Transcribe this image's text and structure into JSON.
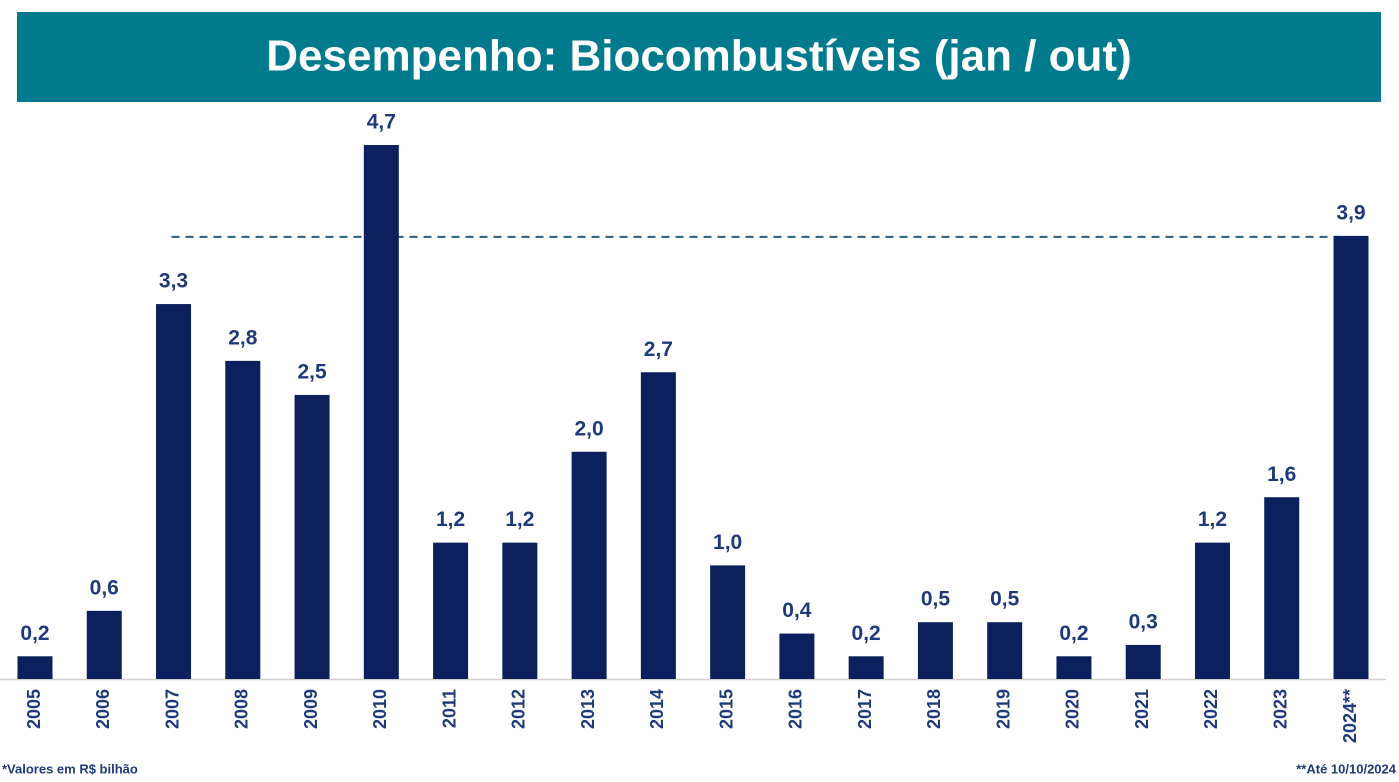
{
  "chart_data": {
    "type": "bar",
    "title": "Desempenho: Biocombustíveis (jan / out)",
    "categories": [
      "2005",
      "2006",
      "2007",
      "2008",
      "2009",
      "2010",
      "2011",
      "2012",
      "2013",
      "2014",
      "2015",
      "2016",
      "2017",
      "2018",
      "2019",
      "2020",
      "2021",
      "2022",
      "2023",
      "2024**"
    ],
    "values": [
      0.2,
      0.6,
      3.3,
      2.8,
      2.5,
      4.7,
      1.2,
      1.2,
      2.0,
      2.7,
      1.0,
      0.4,
      0.2,
      0.5,
      0.5,
      0.2,
      0.3,
      1.2,
      1.6,
      3.9
    ],
    "value_labels": [
      "0,2",
      "0,6",
      "3,3",
      "2,8",
      "2,5",
      "4,7",
      "1,2",
      "1,2",
      "2,0",
      "2,7",
      "1,0",
      "0,4",
      "0,2",
      "0,5",
      "0,5",
      "0,2",
      "0,3",
      "1,2",
      "1,6",
      "3,9"
    ],
    "color": "#0b205c",
    "footnote_left": "*Valores em R$ bilhão",
    "footnote_right": "**Até 10/10/2024"
  }
}
